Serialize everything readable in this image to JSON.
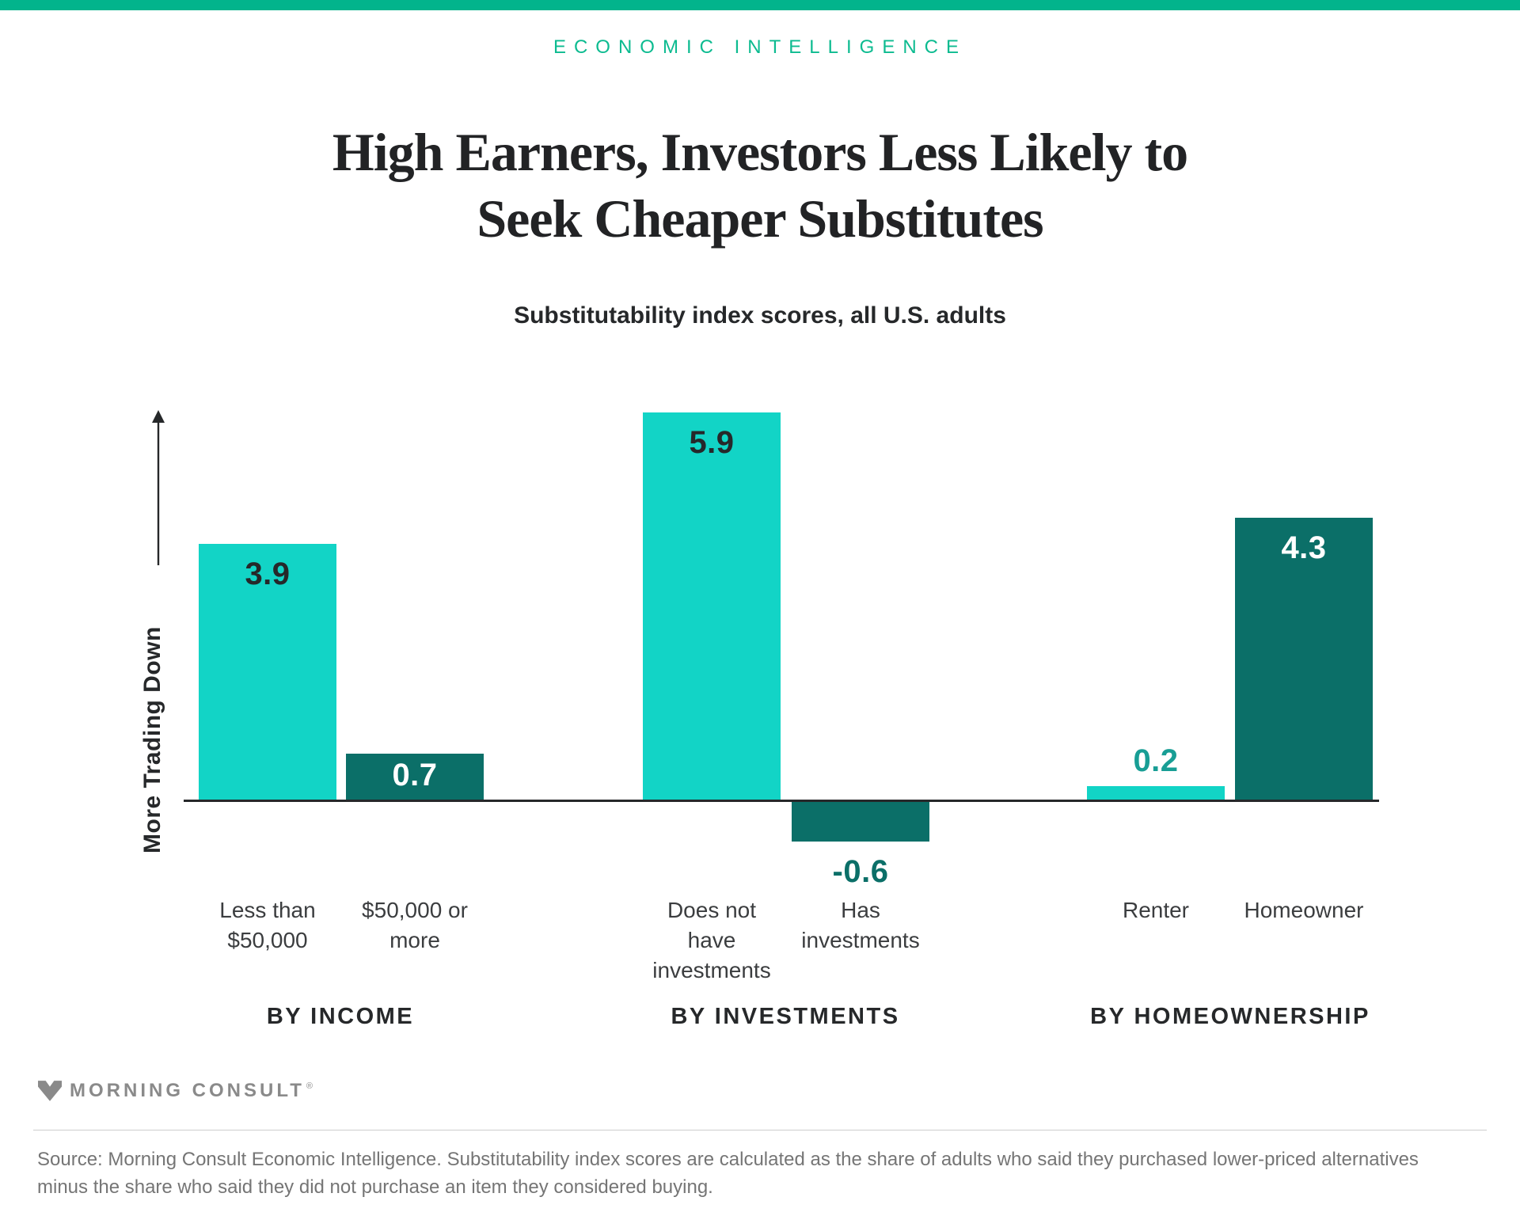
{
  "header": {
    "topbar_color": "#02b48c",
    "kicker": "ECONOMIC INTELLIGENCE",
    "kicker_color": "#0cbb90",
    "title_line1": "High Earners, Investors Less Likely to",
    "title_line2": "Seek Cheaper Substitutes",
    "subtitle": "Substitutability index scores, all U.S. adults"
  },
  "chart_data": {
    "type": "bar",
    "title": "Substitutability index scores, all U.S. adults",
    "y_axis_label": "More Trading Down",
    "baseline_value": 0,
    "ylim": [
      -1,
      6.5
    ],
    "grid": false,
    "legend": false,
    "colors": {
      "light_teal": "#12d4c6",
      "dark_teal": "#0b6f68"
    },
    "groups": [
      {
        "label": "BY INCOME",
        "bars": [
          {
            "category": "Less than\n$50,000",
            "value": 3.9,
            "display": "3.9",
            "color": "light",
            "value_pos": "inside-top",
            "value_color": "#26282a"
          },
          {
            "category": "$50,000 or\nmore",
            "value": 0.7,
            "display": "0.7",
            "color": "dark",
            "value_pos": "inside-middle",
            "value_color": "#ffffff"
          }
        ]
      },
      {
        "label": "BY INVESTMENTS",
        "bars": [
          {
            "category": "Does not\nhave\ninvestments",
            "value": 5.9,
            "display": "5.9",
            "color": "light",
            "value_pos": "inside-top",
            "value_color": "#26282a"
          },
          {
            "category": "Has\ninvestments",
            "value": -0.6,
            "display": "-0.6",
            "color": "dark",
            "value_pos": "below",
            "value_color": "#0b6f68"
          }
        ]
      },
      {
        "label": "BY HOMEOWNERSHIP",
        "bars": [
          {
            "category": "Renter",
            "value": 0.2,
            "display": "0.2",
            "color": "light",
            "value_pos": "above",
            "value_color": "#189e95"
          },
          {
            "category": "Homeowner",
            "value": 4.3,
            "display": "4.3",
            "color": "dark",
            "value_pos": "inside-top",
            "value_color": "#ffffff"
          }
        ]
      }
    ]
  },
  "footer": {
    "logo_text": "MORNING CONSULT",
    "registered_mark": "®",
    "source": "Source: Morning Consult Economic Intelligence. Substitutability index scores are calculated as the share of adults who said they purchased lower-priced alternatives minus the share who said they did not purchase an item they considered buying."
  }
}
